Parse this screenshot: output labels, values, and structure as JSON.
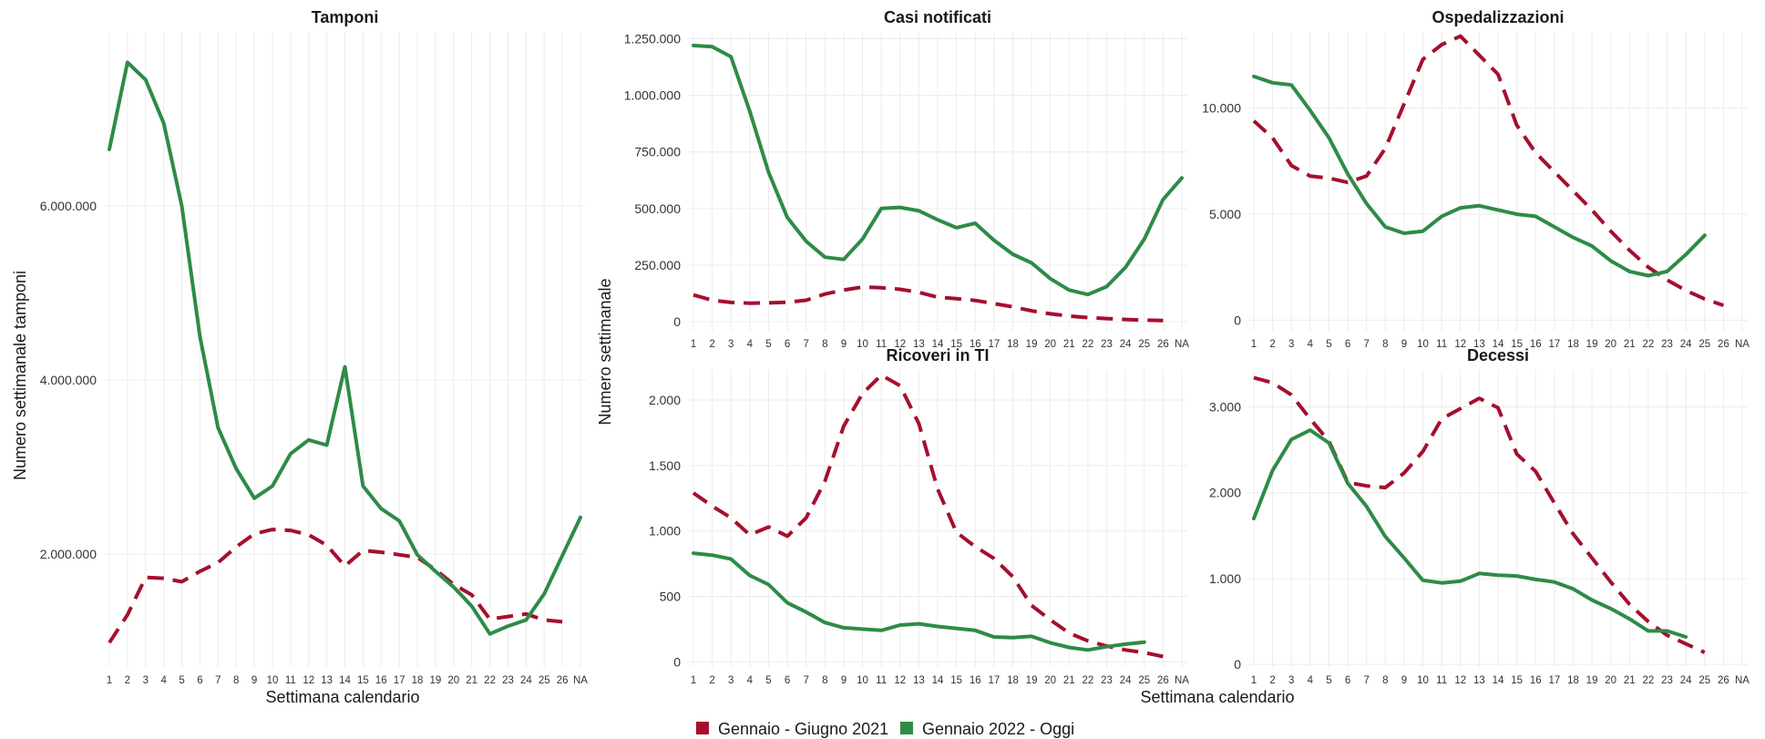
{
  "legend": {
    "items": [
      {
        "label": "Gennaio - Giugno 2021",
        "color": "#a50f2d",
        "dash": "dashed"
      },
      {
        "label": "Gennaio 2022 - Oggi",
        "color": "#2e8b47",
        "dash": "solid"
      }
    ],
    "placement": "bottom"
  },
  "axes": {
    "x_title_left": "Settimana calendario",
    "x_title_right": "Settimana calendario",
    "y_title_left": "Numero settimanale tamponi",
    "y_title_right": "Numero settimanale"
  },
  "chart_data": [
    {
      "type": "line",
      "title": "Tamponi",
      "ylabel": "Numero settimanale tamponi",
      "xlabel": "Settimana calendario",
      "x_ticks": [
        "1",
        "2",
        "3",
        "4",
        "5",
        "6",
        "7",
        "8",
        "9",
        "10",
        "11",
        "12",
        "13",
        "14",
        "15",
        "16",
        "17",
        "18",
        "19",
        "20",
        "21",
        "22",
        "23",
        "24",
        "25",
        "26",
        "NA"
      ],
      "ylim": [
        700000,
        8000000
      ],
      "y_ticks": [
        2000000,
        4000000,
        6000000
      ],
      "y_tick_labels": [
        "2.000.000",
        "4.000.000",
        "6.000.000"
      ],
      "grid": true,
      "series": [
        {
          "name": "Gennaio - Giugno 2021",
          "color": "#a50f2d",
          "style": "dashed",
          "x": [
            1,
            2,
            3,
            4,
            5,
            6,
            7,
            8,
            9,
            10,
            11,
            12,
            13,
            14,
            15,
            16,
            17,
            18,
            19,
            20,
            21,
            22,
            23,
            24,
            25,
            26
          ],
          "y": [
            980000,
            1300000,
            1730000,
            1720000,
            1680000,
            1800000,
            1900000,
            2080000,
            2230000,
            2280000,
            2270000,
            2220000,
            2100000,
            1860000,
            2040000,
            2020000,
            1990000,
            1960000,
            1820000,
            1650000,
            1530000,
            1250000,
            1280000,
            1310000,
            1240000,
            1220000
          ]
        },
        {
          "name": "Gennaio 2022 - Oggi",
          "color": "#2e8b47",
          "style": "solid",
          "x": [
            1,
            2,
            3,
            4,
            5,
            6,
            7,
            8,
            9,
            10,
            11,
            12,
            13,
            14,
            15,
            16,
            17,
            18,
            19,
            20,
            21,
            22,
            23,
            24,
            25,
            26,
            27
          ],
          "y": [
            6650000,
            7650000,
            7450000,
            6950000,
            6000000,
            4500000,
            3450000,
            2980000,
            2640000,
            2780000,
            3150000,
            3310000,
            3250000,
            4150000,
            2780000,
            2520000,
            2380000,
            1990000,
            1800000,
            1620000,
            1400000,
            1080000,
            1170000,
            1240000,
            1540000,
            1980000,
            2420000
          ]
        }
      ]
    },
    {
      "type": "line",
      "title": "Casi notificati",
      "x_ticks": [
        "1",
        "2",
        "3",
        "4",
        "5",
        "6",
        "7",
        "8",
        "9",
        "10",
        "11",
        "12",
        "13",
        "14",
        "15",
        "16",
        "17",
        "18",
        "19",
        "20",
        "21",
        "22",
        "23",
        "24",
        "25",
        "26",
        "NA"
      ],
      "ylim": [
        -40000,
        1280000
      ],
      "y_ticks": [
        0,
        250000,
        500000,
        750000,
        1000000,
        1250000
      ],
      "y_tick_labels": [
        "0",
        "250.000",
        "500.000",
        "750.000",
        "1.000.000",
        "1.250.000"
      ],
      "grid": true,
      "series": [
        {
          "name": "Gennaio - Giugno 2021",
          "color": "#a50f2d",
          "style": "dashed",
          "x": [
            1,
            2,
            3,
            4,
            5,
            6,
            7,
            8,
            9,
            10,
            11,
            12,
            13,
            14,
            15,
            16,
            17,
            18,
            19,
            20,
            21,
            22,
            23,
            24,
            25,
            26
          ],
          "y": [
            118000,
            95000,
            85000,
            82000,
            83000,
            86000,
            95000,
            122000,
            140000,
            153000,
            150000,
            143000,
            130000,
            108000,
            102000,
            94000,
            80000,
            66000,
            48000,
            35000,
            25000,
            18000,
            14000,
            10000,
            7000,
            5000
          ]
        },
        {
          "name": "Gennaio 2022 - Oggi",
          "color": "#2e8b47",
          "style": "solid",
          "x": [
            1,
            2,
            3,
            4,
            5,
            6,
            7,
            8,
            9,
            10,
            11,
            12,
            13,
            14,
            15,
            16,
            17,
            18,
            19,
            20,
            21,
            22,
            23,
            24,
            25,
            26,
            27
          ],
          "y": [
            1220000,
            1215000,
            1170000,
            930000,
            660000,
            460000,
            355000,
            285000,
            275000,
            365000,
            500000,
            505000,
            490000,
            450000,
            415000,
            435000,
            360000,
            298000,
            260000,
            190000,
            140000,
            120000,
            155000,
            240000,
            365000,
            540000,
            635000
          ]
        }
      ]
    },
    {
      "type": "line",
      "title": "Ospedalizzazioni",
      "x_ticks": [
        "1",
        "2",
        "3",
        "4",
        "5",
        "6",
        "7",
        "8",
        "9",
        "10",
        "11",
        "12",
        "13",
        "14",
        "15",
        "16",
        "17",
        "18",
        "19",
        "20",
        "21",
        "22",
        "23",
        "24",
        "25",
        "26",
        "NA"
      ],
      "ylim": [
        -500,
        13600
      ],
      "y_ticks": [
        0,
        5000,
        10000
      ],
      "y_tick_labels": [
        "0",
        "5.000",
        "10.000"
      ],
      "grid": true,
      "series": [
        {
          "name": "Gennaio - Giugno 2021",
          "color": "#a50f2d",
          "style": "dashed",
          "x": [
            1,
            2,
            3,
            4,
            5,
            6,
            7,
            8,
            9,
            10,
            11,
            12,
            13,
            14,
            15,
            16,
            17,
            18,
            19,
            20,
            21,
            22,
            23,
            24,
            25,
            26
          ],
          "y": [
            9400,
            8600,
            7300,
            6800,
            6700,
            6500,
            6800,
            8100,
            10200,
            12300,
            13000,
            13400,
            12500,
            11600,
            9200,
            7900,
            7000,
            6100,
            5200,
            4200,
            3300,
            2500,
            1900,
            1400,
            1000,
            700
          ]
        },
        {
          "name": "Gennaio 2022 - Oggi",
          "color": "#2e8b47",
          "style": "solid",
          "x": [
            1,
            2,
            3,
            4,
            5,
            6,
            7,
            8,
            9,
            10,
            11,
            12,
            13,
            14,
            15,
            16,
            17,
            18,
            19,
            20,
            21,
            22,
            23,
            24,
            25
          ],
          "y": [
            11500,
            11200,
            11100,
            9900,
            8600,
            6900,
            5500,
            4400,
            4100,
            4200,
            4900,
            5300,
            5400,
            5200,
            5000,
            4900,
            4400,
            3900,
            3500,
            2800,
            2300,
            2100,
            2300,
            3100,
            4000
          ]
        }
      ]
    },
    {
      "type": "line",
      "title": "Ricoveri in TI",
      "x_ticks": [
        "1",
        "2",
        "3",
        "4",
        "5",
        "6",
        "7",
        "8",
        "9",
        "10",
        "11",
        "12",
        "13",
        "14",
        "15",
        "16",
        "17",
        "18",
        "19",
        "20",
        "21",
        "22",
        "23",
        "24",
        "25",
        "26",
        "NA"
      ],
      "ylim": [
        -40,
        2230
      ],
      "y_ticks": [
        0,
        500,
        1000,
        1500,
        2000
      ],
      "y_tick_labels": [
        "0",
        "500",
        "1.000",
        "1.500",
        "2.000"
      ],
      "grid": true,
      "series": [
        {
          "name": "Gennaio - Giugno 2021",
          "color": "#a50f2d",
          "style": "dashed",
          "x": [
            1,
            2,
            3,
            4,
            5,
            6,
            7,
            8,
            9,
            10,
            11,
            12,
            13,
            14,
            15,
            16,
            17,
            18,
            19,
            20,
            21,
            22,
            23,
            24,
            25,
            26
          ],
          "y": [
            1290,
            1190,
            1100,
            970,
            1030,
            960,
            1100,
            1380,
            1800,
            2050,
            2190,
            2110,
            1820,
            1320,
            990,
            880,
            790,
            650,
            430,
            320,
            220,
            160,
            120,
            90,
            70,
            40
          ]
        },
        {
          "name": "Gennaio 2022 - Oggi",
          "color": "#2e8b47",
          "style": "solid",
          "x": [
            1,
            2,
            3,
            4,
            5,
            6,
            7,
            8,
            9,
            10,
            11,
            12,
            13,
            14,
            15,
            16,
            17,
            18,
            19,
            20,
            21,
            22,
            23,
            24,
            25
          ],
          "y": [
            830,
            815,
            785,
            660,
            590,
            450,
            380,
            300,
            260,
            250,
            240,
            280,
            290,
            270,
            255,
            240,
            190,
            185,
            195,
            145,
            110,
            90,
            115,
            135,
            150
          ]
        }
      ]
    },
    {
      "type": "line",
      "title": "Decessi",
      "x_ticks": [
        "1",
        "2",
        "3",
        "4",
        "5",
        "6",
        "7",
        "8",
        "9",
        "10",
        "11",
        "12",
        "13",
        "14",
        "15",
        "16",
        "17",
        "18",
        "19",
        "20",
        "21",
        "22",
        "23",
        "24",
        "25",
        "26",
        "NA"
      ],
      "ylim": [
        -30,
        3430
      ],
      "y_ticks": [
        0,
        1000,
        2000,
        3000
      ],
      "y_tick_labels": [
        "0",
        "1.000",
        "2.000",
        "3.000"
      ],
      "grid": true,
      "series": [
        {
          "name": "Gennaio - Giugno 2021",
          "color": "#a50f2d",
          "style": "dashed",
          "x": [
            1,
            2,
            3,
            4,
            5,
            6,
            7,
            8,
            9,
            10,
            11,
            12,
            13,
            14,
            15,
            16,
            17,
            18,
            19,
            20,
            21,
            22,
            23,
            24,
            25
          ],
          "y": [
            3340,
            3280,
            3140,
            2860,
            2600,
            2120,
            2080,
            2060,
            2230,
            2480,
            2860,
            2980,
            3100,
            2990,
            2450,
            2250,
            1880,
            1520,
            1240,
            960,
            700,
            500,
            340,
            240,
            140
          ]
        },
        {
          "name": "Gennaio 2022 - Oggi",
          "color": "#2e8b47",
          "style": "solid",
          "x": [
            1,
            2,
            3,
            4,
            5,
            6,
            7,
            8,
            9,
            10,
            11,
            12,
            13,
            14,
            15,
            16,
            17,
            18,
            19,
            20,
            21,
            22,
            23,
            24
          ],
          "y": [
            1700,
            2260,
            2620,
            2730,
            2580,
            2110,
            1840,
            1490,
            1240,
            980,
            950,
            970,
            1060,
            1040,
            1030,
            990,
            960,
            880,
            750,
            650,
            530,
            390,
            390,
            320
          ]
        }
      ]
    }
  ]
}
